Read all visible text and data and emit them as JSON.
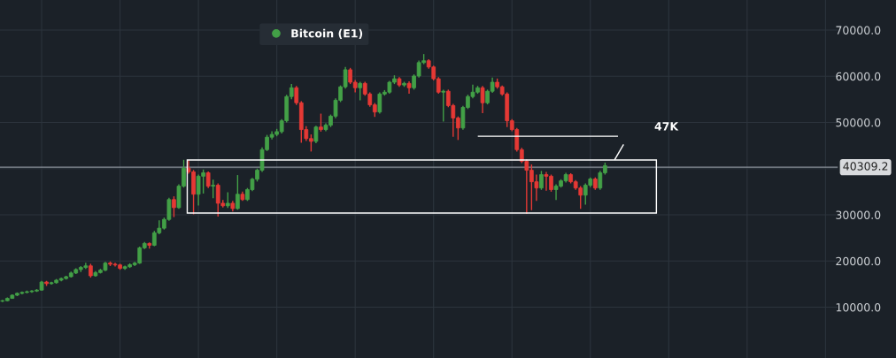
{
  "chart_data": {
    "type": "candlestick",
    "categories": [
      null,
      null,
      null,
      null,
      null,
      null,
      null,
      null,
      null,
      null,
      null,
      null,
      null,
      null,
      null,
      null,
      null,
      null,
      null,
      null,
      null,
      null,
      null,
      null,
      null,
      null,
      null,
      null,
      null,
      null,
      null,
      null,
      null,
      null,
      null,
      null,
      null,
      null,
      null,
      null,
      null,
      null,
      null,
      null,
      null,
      null,
      null,
      null,
      null,
      null,
      null,
      null,
      null,
      null,
      null,
      null,
      null,
      null,
      null,
      null,
      null,
      null,
      null,
      null,
      null,
      null,
      null,
      null,
      null,
      null,
      null,
      null,
      null,
      null,
      null,
      null,
      null,
      null,
      null,
      null,
      null,
      null,
      null,
      null,
      null,
      null,
      null,
      null,
      null,
      null,
      null,
      null,
      null,
      null,
      null,
      null,
      null,
      null,
      null,
      null,
      null,
      null,
      null,
      null,
      null,
      null,
      null,
      null,
      null,
      null,
      null,
      null,
      null,
      null,
      null,
      null,
      null,
      null,
      null,
      null,
      null,
      null,
      null,
      null,
      null,
      null,
      null,
      null,
      null,
      null,
      null,
      null,
      null,
      null,
      null,
      null,
      null,
      null,
      null,
      null,
      null,
      null,
      null,
      null,
      null,
      null,
      null,
      null,
      null,
      null,
      null,
      null,
      null,
      null,
      null,
      null,
      null,
      null,
      null,
      null,
      null,
      null,
      null,
      null,
      null,
      null,
      null,
      null,
      null,
      null,
      null
    ],
    "series": [
      {
        "name": "Bitcoin (E1)",
        "color": "#43a047",
        "colors": [
          "#43a047",
          "#43a047",
          "#43a047",
          "#43a047",
          "#43a047",
          "#43a047",
          "#43a047",
          "#43a047",
          "#43a047",
          "#e53935",
          "#43a047",
          "#43a047",
          "#43a047",
          "#43a047",
          "#43a047",
          "#43a047",
          "#43a047",
          "#43a047",
          "#e53935",
          "#43a047",
          "#43a047",
          "#43a047",
          "#e53935",
          "#e53935",
          "#e53935",
          "#43a047",
          "#43a047",
          "#43a047",
          "#43a047",
          "#43a047",
          "#e53935",
          "#43a047",
          "#43a047",
          "#43a047",
          "#43a047",
          "#e53935",
          "#43a047",
          "#43a047",
          "#e53935",
          "#e53935",
          "#43a047",
          "#43a047",
          "#e53935",
          "#43a047",
          "#e53935",
          "#e53935",
          "#43a047",
          "#e53935",
          "#43a047",
          "#e53935",
          "#43a047",
          "#43a047",
          "#43a047",
          "#43a047",
          "#43a047",
          "#43a047",
          "#43a047",
          "#43a047",
          "#43a047",
          "#43a047",
          "#e53935",
          "#e53935",
          "#e53935",
          "#e53935",
          "#43a047",
          "#e53935",
          "#43a047",
          "#43a047",
          "#43a047",
          "#43a047",
          "#43a047",
          "#e53935",
          "#e53935",
          "#43a047",
          "#e53935",
          "#e53935",
          "#e53935",
          "#43a047",
          "#43a047",
          "#43a047",
          "#43a047",
          "#e53935",
          "#43a047",
          "#e53935",
          "#43a047",
          "#43a047",
          "#43a047",
          "#e53935",
          "#e53935",
          "#e53935",
          "#43a047",
          "#e53935",
          "#e53935",
          "#e53935",
          "#43a047",
          "#43a047",
          "#43a047",
          "#43a047",
          "#e53935",
          "#43a047",
          "#43a047",
          "#e53935",
          "#e53935",
          "#e53935",
          "#e53935",
          "#e53935",
          "#e53935",
          "#e53935",
          "#e53935",
          "#e53935",
          "#43a047",
          "#e53935",
          "#e53935",
          "#43a047",
          "#43a047",
          "#43a047",
          "#e53935",
          "#e53935",
          "#e53935",
          "#43a047",
          "#43a047",
          "#e53935",
          "#43a047",
          "#43a047",
          null,
          null,
          null,
          null,
          null,
          null,
          null,
          null,
          null,
          null,
          null,
          null,
          null,
          null,
          null,
          null,
          null,
          null,
          null,
          null,
          null,
          null,
          null,
          null,
          null,
          null,
          null,
          null,
          null,
          null,
          null,
          null,
          null,
          null,
          null,
          null,
          null,
          null,
          null,
          null,
          null,
          null,
          null,
          null,
          null,
          null,
          null
        ],
        "ohlc": [
          [
            11300,
            11600,
            11100,
            11400
          ],
          [
            11400,
            12100,
            11300,
            11900
          ],
          [
            11900,
            12800,
            11800,
            12600
          ],
          [
            12600,
            13200,
            12400,
            13000
          ],
          [
            13000,
            13400,
            12800,
            13200
          ],
          [
            13200,
            13600,
            13000,
            13350
          ],
          [
            13350,
            13700,
            13100,
            13500
          ],
          [
            13500,
            13900,
            13300,
            13700
          ],
          [
            13700,
            15700,
            13600,
            15450
          ],
          [
            15450,
            15700,
            14600,
            15100
          ],
          [
            15100,
            15500,
            14900,
            15300
          ],
          [
            15300,
            16100,
            15100,
            15850
          ],
          [
            15850,
            16400,
            15600,
            16200
          ],
          [
            16200,
            16800,
            16000,
            16600
          ],
          [
            16600,
            17700,
            16400,
            17400
          ],
          [
            17400,
            18400,
            17200,
            18150
          ],
          [
            18150,
            18900,
            17600,
            18600
          ],
          [
            18600,
            19600,
            18300,
            18950
          ],
          [
            18950,
            19400,
            16400,
            16800
          ],
          [
            16800,
            17800,
            16600,
            17500
          ],
          [
            17500,
            18300,
            17300,
            18000
          ],
          [
            18000,
            19800,
            17800,
            19550
          ],
          [
            19550,
            19900,
            18900,
            19300
          ],
          [
            19300,
            19600,
            18800,
            19150
          ],
          [
            19150,
            19400,
            18100,
            18400
          ],
          [
            18400,
            19000,
            18100,
            18750
          ],
          [
            18750,
            19500,
            18500,
            19200
          ],
          [
            19200,
            19800,
            18900,
            19550
          ],
          [
            19550,
            23100,
            19400,
            22850
          ],
          [
            22850,
            24100,
            22600,
            23800
          ],
          [
            23800,
            24000,
            22700,
            23400
          ],
          [
            23400,
            26500,
            23200,
            26100
          ],
          [
            26100,
            28800,
            25800,
            27100
          ],
          [
            27100,
            29400,
            26800,
            29000
          ],
          [
            29000,
            33700,
            28700,
            33300
          ],
          [
            33300,
            34000,
            29500,
            31550
          ],
          [
            31550,
            36600,
            31300,
            36200
          ],
          [
            36200,
            41900,
            35900,
            40100
          ],
          [
            40100,
            41800,
            38900,
            39300
          ],
          [
            39300,
            39700,
            30100,
            34450
          ],
          [
            34450,
            38700,
            32000,
            38350
          ],
          [
            38350,
            39800,
            34600,
            39100
          ],
          [
            39100,
            39400,
            35800,
            36200
          ],
          [
            36200,
            37600,
            33600,
            36400
          ],
          [
            36400,
            36800,
            29600,
            32500
          ],
          [
            32500,
            33200,
            31600,
            31950
          ],
          [
            31950,
            34900,
            31500,
            32500
          ],
          [
            32500,
            33000,
            30700,
            31350
          ],
          [
            31350,
            38600,
            31100,
            34450
          ],
          [
            34450,
            35000,
            33000,
            33300
          ],
          [
            33300,
            35800,
            33000,
            35450
          ],
          [
            35450,
            38000,
            35100,
            37700
          ],
          [
            37700,
            40000,
            37200,
            39650
          ],
          [
            39650,
            44600,
            39300,
            44100
          ],
          [
            44100,
            47300,
            43800,
            46800
          ],
          [
            46800,
            48100,
            46300,
            47400
          ],
          [
            47400,
            48600,
            47000,
            48000
          ],
          [
            48000,
            50700,
            47600,
            50350
          ],
          [
            50350,
            56000,
            50000,
            55600
          ],
          [
            55600,
            58300,
            55000,
            57500
          ],
          [
            57500,
            57900,
            53800,
            54250
          ],
          [
            54250,
            54600,
            45600,
            48450
          ],
          [
            48450,
            49200,
            46000,
            46500
          ],
          [
            46500,
            47400,
            43700,
            45900
          ],
          [
            45900,
            49300,
            45500,
            49000
          ],
          [
            49000,
            51900,
            48000,
            48450
          ],
          [
            48450,
            49800,
            48100,
            49400
          ],
          [
            49400,
            51700,
            49000,
            51350
          ],
          [
            51350,
            55200,
            50900,
            54800
          ],
          [
            54800,
            58000,
            54400,
            57700
          ],
          [
            57700,
            62000,
            57300,
            61400
          ],
          [
            61400,
            61800,
            58300,
            58700
          ],
          [
            58700,
            59200,
            56500,
            57500
          ],
          [
            57500,
            58800,
            54800,
            58450
          ],
          [
            58450,
            58800,
            55800,
            56150
          ],
          [
            56150,
            56500,
            53400,
            53800
          ],
          [
            53800,
            54200,
            51200,
            52250
          ],
          [
            52250,
            56500,
            51900,
            56150
          ],
          [
            56150,
            57000,
            55800,
            56550
          ],
          [
            56550,
            59000,
            56200,
            58700
          ],
          [
            58700,
            60200,
            58300,
            59450
          ],
          [
            59450,
            59800,
            57700,
            58100
          ],
          [
            58100,
            58800,
            57700,
            58450
          ],
          [
            58450,
            58900,
            56200,
            57500
          ],
          [
            57500,
            60400,
            57100,
            60050
          ],
          [
            60050,
            63400,
            59700,
            62950
          ],
          [
            62950,
            64800,
            62600,
            63350
          ],
          [
            63350,
            63700,
            61600,
            62000
          ],
          [
            62000,
            62300,
            59100,
            59450
          ],
          [
            59450,
            59800,
            56200,
            56550
          ],
          [
            56550,
            57100,
            50200,
            56750
          ],
          [
            56750,
            57100,
            53300,
            53650
          ],
          [
            53650,
            54000,
            46900,
            50950
          ],
          [
            50950,
            51300,
            46200,
            48800
          ],
          [
            48800,
            53600,
            48400,
            53250
          ],
          [
            53250,
            56000,
            52900,
            55600
          ],
          [
            55600,
            58200,
            55200,
            56550
          ],
          [
            56550,
            57900,
            56200,
            57500
          ],
          [
            57500,
            57900,
            52000,
            54250
          ],
          [
            54250,
            57100,
            53900,
            56750
          ],
          [
            56750,
            59700,
            56400,
            58700
          ],
          [
            58700,
            59500,
            57300,
            57700
          ],
          [
            57700,
            58000,
            55800,
            56150
          ],
          [
            56150,
            56500,
            49000,
            50350
          ],
          [
            50350,
            50700,
            48100,
            48450
          ],
          [
            48450,
            48800,
            43700,
            44100
          ],
          [
            44100,
            44500,
            41200,
            41600
          ],
          [
            41600,
            42000,
            30200,
            39650
          ],
          [
            39650,
            40900,
            31000,
            37150
          ],
          [
            37150,
            38700,
            33000,
            35800
          ],
          [
            35800,
            39500,
            35400,
            38700
          ],
          [
            38700,
            39300,
            35200,
            38350
          ],
          [
            38350,
            38700,
            35000,
            35450
          ],
          [
            35450,
            36600,
            33200,
            36200
          ],
          [
            36200,
            37700,
            35900,
            37350
          ],
          [
            37350,
            39100,
            37000,
            38700
          ],
          [
            38700,
            39000,
            36800,
            37150
          ],
          [
            37150,
            37500,
            35400,
            35800
          ],
          [
            35800,
            36200,
            31300,
            34250
          ],
          [
            34250,
            36800,
            32200,
            36400
          ],
          [
            36400,
            38100,
            36000,
            37750
          ],
          [
            37750,
            38100,
            35400,
            35800
          ],
          [
            35800,
            39500,
            35400,
            39100
          ],
          [
            39100,
            41300,
            38700,
            40650
          ],
          null,
          null,
          null,
          null,
          null,
          null,
          null,
          null,
          null,
          null,
          null,
          null,
          null,
          null,
          null,
          null,
          null,
          null,
          null,
          null,
          null,
          null,
          null,
          null,
          null,
          null,
          null,
          null,
          null,
          null,
          null,
          null,
          null,
          null,
          null,
          null,
          null,
          null,
          null,
          null,
          null,
          null,
          null,
          null,
          null,
          null,
          null
        ]
      }
    ],
    "ylim": [
      -1000,
      76500
    ],
    "yticks": [
      {
        "value": 10000,
        "label": "10000.0"
      },
      {
        "value": 20000,
        "label": "20000.0"
      },
      {
        "value": 30000,
        "label": "30000.0"
      },
      {
        "value": 40000,
        "label": null
      },
      {
        "value": 50000,
        "label": "50000.0"
      },
      {
        "value": 60000,
        "label": "60000.0"
      },
      {
        "value": 70000,
        "label": "70000.0"
      }
    ],
    "tick_labels": "y",
    "grid": true,
    "legend": "top",
    "ref_lines": [
      {
        "axis": "y",
        "value": 40309.2,
        "label": "40309.2",
        "color": "#8a9099"
      },
      {
        "axis": "y",
        "value": 47000,
        "label": "47K",
        "color": "#ffffff"
      }
    ]
  }
}
